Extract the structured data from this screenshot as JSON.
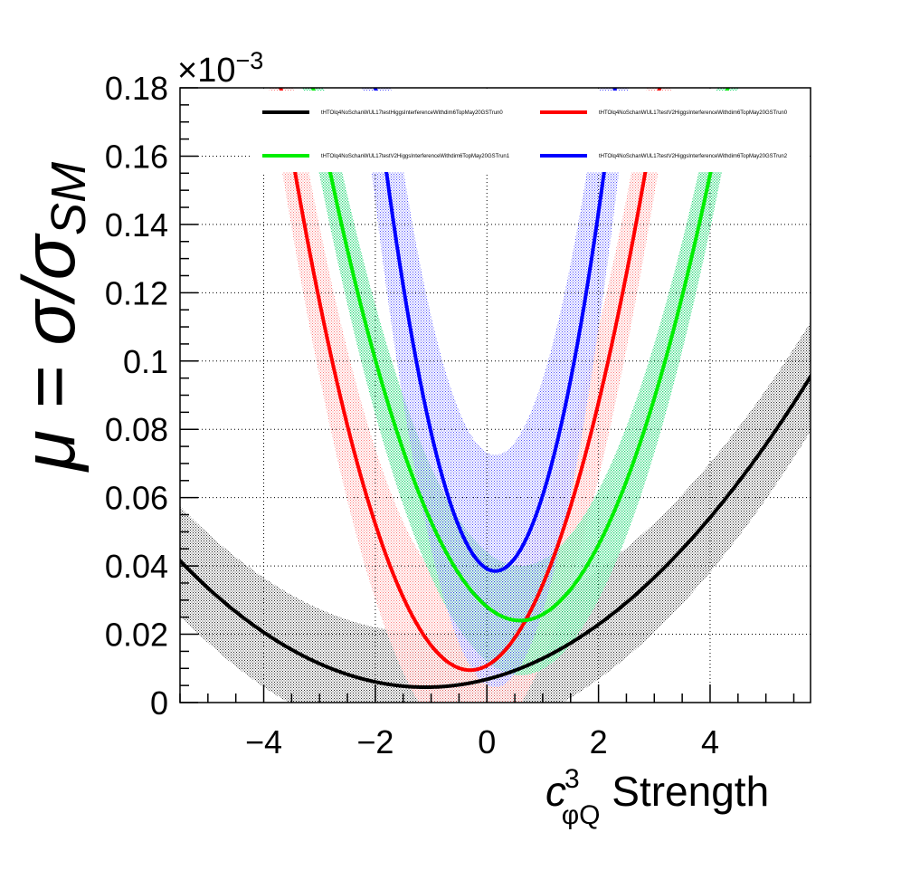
{
  "chart_data": {
    "type": "line",
    "xlabel_base": "c",
    "xlabel_sup": "3",
    "xlabel_sub": "φQ",
    "xlabel_rest": " Strength",
    "ylabel_mu": "μ = σ/σ",
    "ylabel_sub": "SM",
    "y_multiplier": "×10",
    "y_multiplier_exp": "−3",
    "xlim": [
      -5.5,
      5.8
    ],
    "ylim": [
      0,
      0.18
    ],
    "x_ticks": [
      -4,
      -2,
      0,
      2,
      4
    ],
    "x_tick_labels": [
      "−4",
      "−2",
      "0",
      "2",
      "4"
    ],
    "y_ticks": [
      0,
      0.02,
      0.04,
      0.06,
      0.08,
      0.1,
      0.12,
      0.14,
      0.16,
      0.18
    ],
    "y_tick_labels": [
      "0",
      "0.02",
      "0.04",
      "0.06",
      "0.08",
      "0.1",
      "0.12",
      "0.14",
      "0.16",
      "0.18"
    ],
    "grid": true,
    "legend_position": "top",
    "series": [
      {
        "name": "tHTOlq4NoSchanWUL17testHiggsInterferenceWithdim6TopMay20GSTrun0",
        "color": "#000000",
        "band_color": "#000000",
        "min_x": -1.1,
        "min_y": 0.0045,
        "curvature": 0.00191,
        "band_half_width": 0.016
      },
      {
        "name": "tHTOlq4NoSchanWUL17testV2HiggsInterferenceWithdim6TopMay20GSTrun0",
        "color": "#ff0000",
        "band_color": "#ff8888",
        "min_x": -0.3,
        "min_y": 0.0095,
        "curvature": 0.0148,
        "band_half_width": 0.022
      },
      {
        "name": "tHTOlq4NoSchanWUL17testV2HiggsInterferenceWithdim6TopMay20GSTrun1",
        "color": "#00ee00",
        "band_color": "#00cc55",
        "min_x": 0.6,
        "min_y": 0.024,
        "curvature": 0.0113,
        "band_half_width": 0.016
      },
      {
        "name": "tHTOlq4NoSchanWUL17testV2HiggsInterferenceWithdim6TopMay20GSTrun2",
        "color": "#0000ff",
        "band_color": "#4444ff",
        "min_x": 0.15,
        "min_y": 0.0385,
        "curvature": 0.0307,
        "band_half_width": 0.034
      }
    ]
  }
}
